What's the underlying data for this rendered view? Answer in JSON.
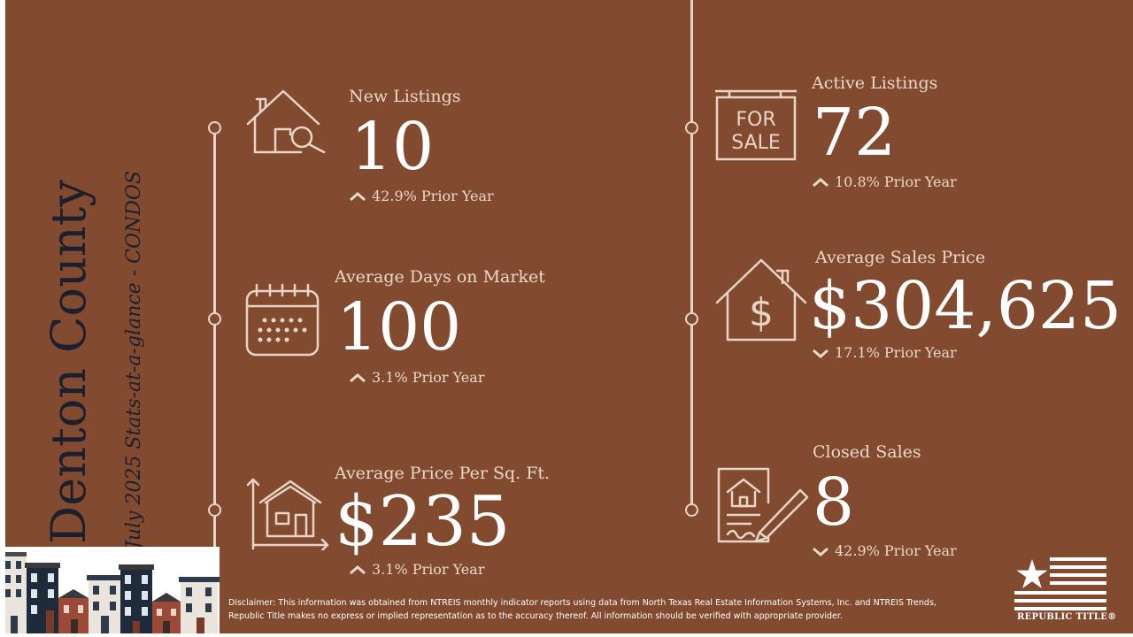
{
  "header": {
    "county": "Denton County",
    "subtitle": "July 2025 Stats-at-a-glance - CONDOS"
  },
  "stats": {
    "new_listings": {
      "label": "New Listings",
      "value": "10",
      "change": "42.9% Prior Year",
      "direction": "up",
      "icon": "house-search-icon"
    },
    "avg_days": {
      "label": "Average Days on Market",
      "value": "100",
      "change": "3.1% Prior Year",
      "direction": "up",
      "icon": "calendar-icon"
    },
    "price_sqft": {
      "label": "Average Price Per Sq. Ft.",
      "value": "$235",
      "change": "3.1% Prior Year",
      "direction": "up",
      "icon": "house-area-icon"
    },
    "active_listings": {
      "label": "Active Listings",
      "value": "72",
      "change": "10.8% Prior Year",
      "direction": "up",
      "icon": "for-sale-sign-icon",
      "sign_text": [
        "FOR",
        "SALE"
      ]
    },
    "avg_price": {
      "label": "Average Sales Price",
      "value": "$304,625",
      "change": "17.1% Prior Year",
      "direction": "down",
      "icon": "house-dollar-icon"
    },
    "closed_sales": {
      "label": "Closed Sales",
      "value": "8",
      "change": "42.9% Prior Year",
      "direction": "down",
      "icon": "contract-signing-icon"
    }
  },
  "disclaimer": "Disclaimer: This information was obtained from NTREIS monthly indicator reports using data from North Texas Real Estate Information Systems, Inc. and NTREIS Trends, Republic Title makes no express or implied representation as to the accuracy thereof. All information should be verified with appropriate provider.",
  "logo": {
    "text": "REPUBLIC TITLE®",
    "icon": "flag-star-icon"
  },
  "colors": {
    "background": "#824a2e",
    "line": "#e7d6c8",
    "title": "#1c1f2e",
    "text": "#ffffff"
  }
}
